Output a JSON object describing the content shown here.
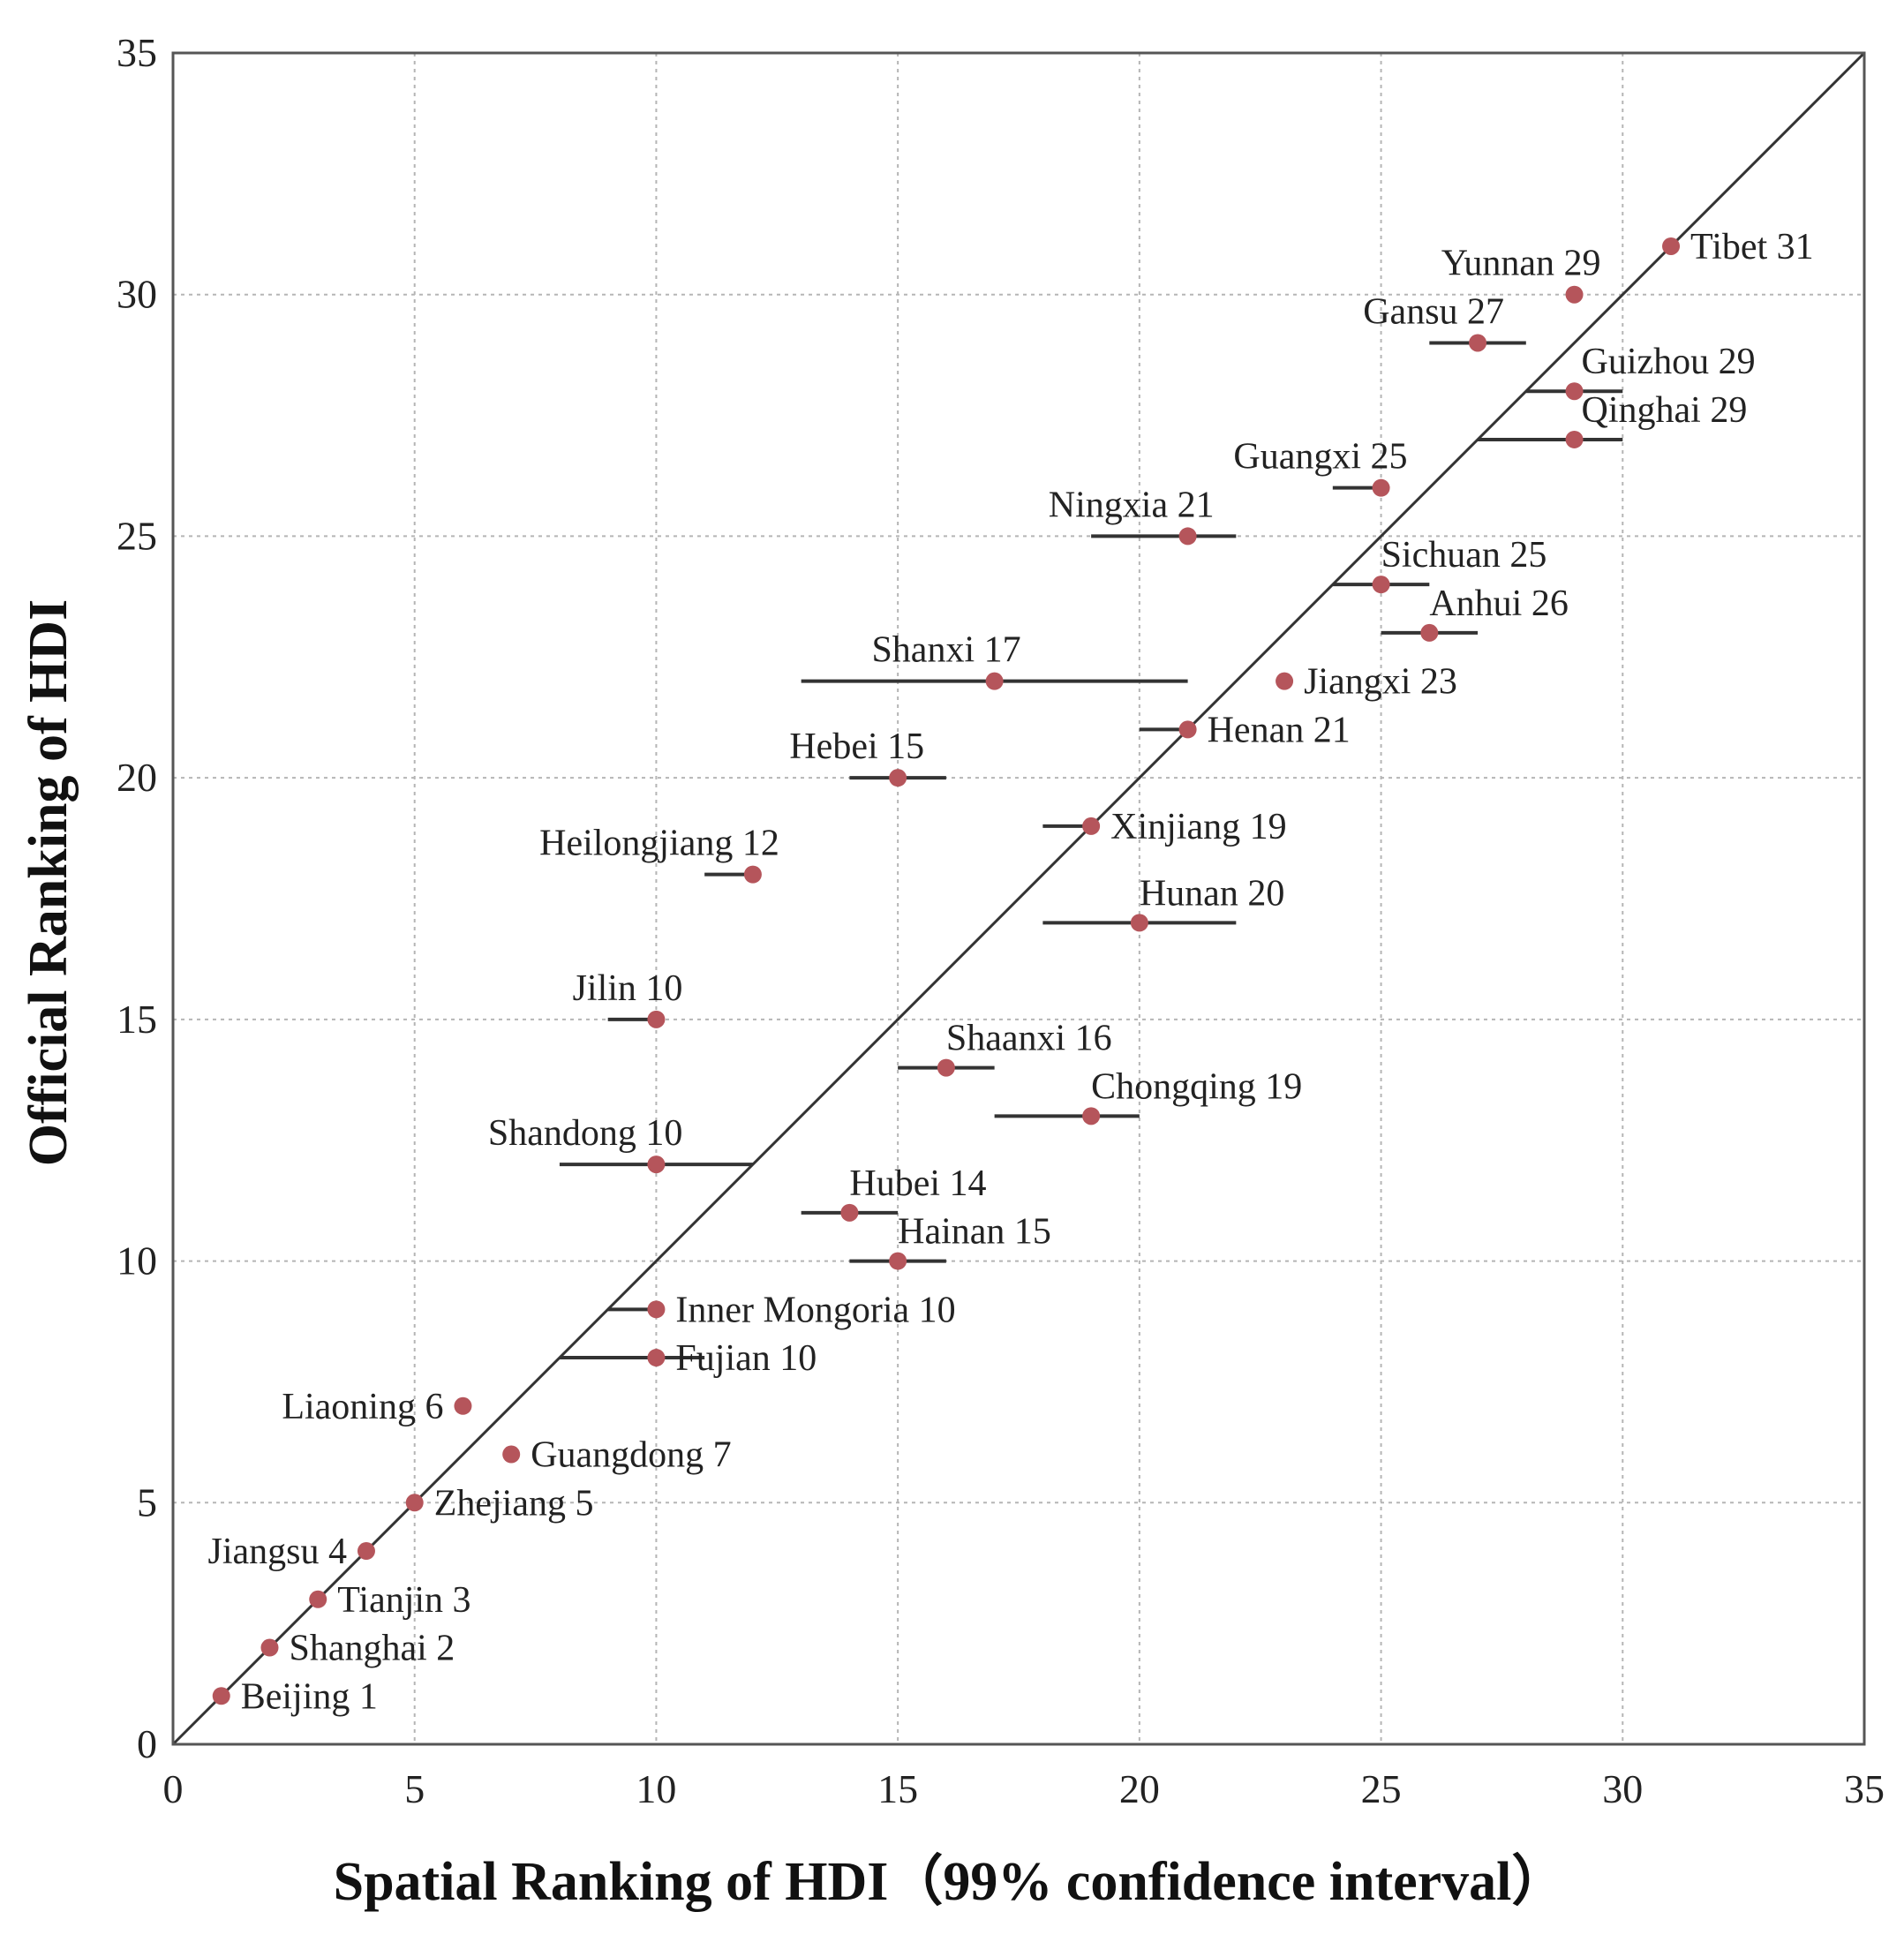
{
  "colors": {
    "point": "#b5555b",
    "line": "#333333",
    "grid": "#b5b5b5"
  },
  "chart_data": {
    "type": "scatter",
    "title": "",
    "xlabel": "Spatial Ranking of HDI（99% confidence interval）",
    "ylabel": "Official Ranking of HDI",
    "xlim": [
      0,
      35
    ],
    "ylim": [
      0,
      35
    ],
    "xticks": [
      "0",
      "5",
      "10",
      "15",
      "20",
      "25",
      "30",
      "35"
    ],
    "yticks": [
      "0",
      "5",
      "10",
      "15",
      "20",
      "25",
      "30",
      "35"
    ],
    "grid": true,
    "reference_line": "y = x",
    "points": [
      {
        "label": "Tibet 31",
        "x": 31,
        "y": 31,
        "ci": null,
        "pos": "right"
      },
      {
        "label": "Yunnan 29",
        "x": 29,
        "y": 30,
        "ci": null,
        "pos": "above-left"
      },
      {
        "label": "Gansu 27",
        "x": 27,
        "y": 29,
        "ci": [
          26,
          28
        ],
        "pos": "above-left"
      },
      {
        "label": "Guizhou 29",
        "x": 29,
        "y": 28,
        "ci": [
          28,
          30
        ],
        "pos": "above-right"
      },
      {
        "label": "Qinghai 29",
        "x": 29,
        "y": 27,
        "ci": [
          27,
          30
        ],
        "pos": "above-right"
      },
      {
        "label": "Guangxi 25",
        "x": 25,
        "y": 26,
        "ci": [
          24,
          25
        ],
        "pos": "above-left"
      },
      {
        "label": "Ningxia 21",
        "x": 21,
        "y": 25,
        "ci": [
          19,
          22
        ],
        "pos": "above-left"
      },
      {
        "label": "Sichuan 25",
        "x": 25,
        "y": 24,
        "ci": [
          24,
          26
        ],
        "pos": "above"
      },
      {
        "label": "Anhui 26",
        "x": 26,
        "y": 23,
        "ci": [
          25,
          27
        ],
        "pos": "above"
      },
      {
        "label": "Jiangxi 23",
        "x": 23,
        "y": 22,
        "ci": null,
        "pos": "right"
      },
      {
        "label": "Shanxi 17",
        "x": 17,
        "y": 22,
        "ci": [
          13,
          21
        ],
        "pos": "above-left"
      },
      {
        "label": "Henan 21",
        "x": 21,
        "y": 21,
        "ci": [
          20,
          21
        ],
        "pos": "right"
      },
      {
        "label": "Hebei 15",
        "x": 15,
        "y": 20,
        "ci": [
          14,
          16
        ],
        "pos": "above-left"
      },
      {
        "label": "Xinjiang 19",
        "x": 19,
        "y": 19,
        "ci": [
          18,
          19
        ],
        "pos": "right"
      },
      {
        "label": "Heilongjiang 12",
        "x": 12,
        "y": 18,
        "ci": [
          11,
          12
        ],
        "pos": "above-left"
      },
      {
        "label": "Hunan 20",
        "x": 20,
        "y": 17,
        "ci": [
          18,
          22
        ],
        "pos": "above"
      },
      {
        "label": "Jilin 10",
        "x": 10,
        "y": 15,
        "ci": [
          9,
          10
        ],
        "pos": "above-left"
      },
      {
        "label": "Shaanxi 16",
        "x": 16,
        "y": 14,
        "ci": [
          15,
          17
        ],
        "pos": "above"
      },
      {
        "label": "Chongqing 19",
        "x": 19,
        "y": 13,
        "ci": [
          17,
          20
        ],
        "pos": "above"
      },
      {
        "label": "Shandong 10",
        "x": 10,
        "y": 12,
        "ci": [
          8,
          12
        ],
        "pos": "above-left"
      },
      {
        "label": "Hubei 14",
        "x": 14,
        "y": 11,
        "ci": [
          13,
          15
        ],
        "pos": "above"
      },
      {
        "label": "Hainan 15",
        "x": 15,
        "y": 10,
        "ci": [
          14,
          16
        ],
        "pos": "above"
      },
      {
        "label": "Inner Mongoria 10",
        "x": 10,
        "y": 9,
        "ci": [
          9,
          10
        ],
        "pos": "right"
      },
      {
        "label": "Fujian 10",
        "x": 10,
        "y": 8,
        "ci": [
          8,
          11
        ],
        "pos": "right"
      },
      {
        "label": "Liaoning 6",
        "x": 6,
        "y": 7,
        "ci": null,
        "pos": "left"
      },
      {
        "label": "Guangdong 7",
        "x": 7,
        "y": 6,
        "ci": null,
        "pos": "right"
      },
      {
        "label": "Zhejiang 5",
        "x": 5,
        "y": 5,
        "ci": null,
        "pos": "right"
      },
      {
        "label": "Jiangsu 4",
        "x": 4,
        "y": 4,
        "ci": null,
        "pos": "left"
      },
      {
        "label": "Tianjin 3",
        "x": 3,
        "y": 3,
        "ci": null,
        "pos": "right"
      },
      {
        "label": "Shanghai 2",
        "x": 2,
        "y": 2,
        "ci": null,
        "pos": "right"
      },
      {
        "label": "Beijing 1",
        "x": 1,
        "y": 1,
        "ci": null,
        "pos": "right"
      }
    ]
  }
}
